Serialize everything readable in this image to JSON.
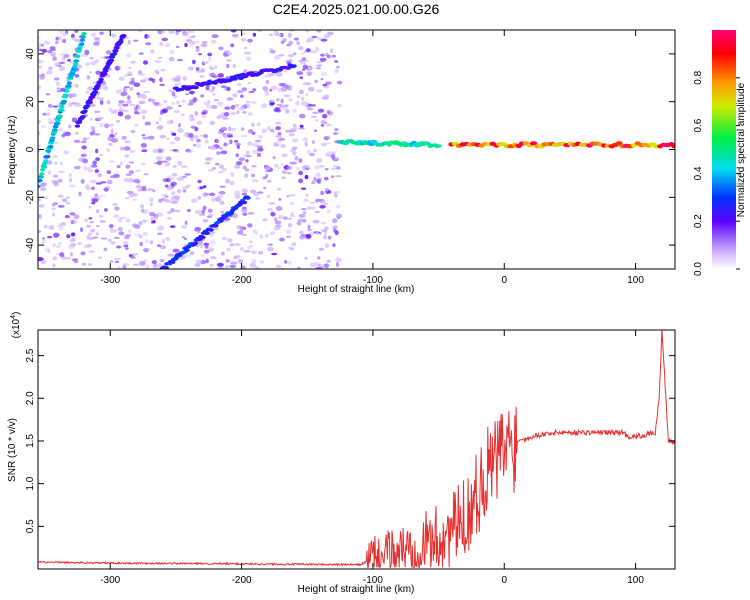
{
  "title": "C2E4.2025.021.00.00.G26",
  "chart_data": [
    {
      "type": "heatmap",
      "xlabel": "Height of straight line (km)",
      "ylabel": "Frequency (Hz)",
      "xlim": [
        -355,
        130
      ],
      "ylim": [
        -50,
        50
      ],
      "xticks": [
        -300,
        -200,
        -100,
        0,
        100
      ],
      "yticks": [
        -40,
        -20,
        0,
        20,
        40
      ],
      "colorbar": {
        "label": "Normalized spectral amplitude",
        "range": [
          0,
          1
        ],
        "ticks": [
          "0.0",
          "0.2",
          "0.4",
          "0.6",
          "0.8"
        ]
      },
      "features": [
        {
          "name": "",
          "x": [
            -355,
            -320
          ],
          "y": [
            -15,
            48
          ],
          "amplitude": 0.45
        },
        {
          "name": "",
          "x": [
            -325,
            -290
          ],
          "y": [
            10,
            48
          ],
          "amplitude": 0.25
        },
        {
          "name": "",
          "x": [
            -260,
            -195
          ],
          "y": [
            -50,
            -20
          ],
          "amplitude": 0.3
        },
        {
          "name": "",
          "x": [
            -250,
            -160
          ],
          "y": [
            25,
            35
          ],
          "amplitude": 0.25
        },
        {
          "name": "",
          "x": [
            -125,
            -50
          ],
          "y": [
            3,
            2
          ],
          "amplitude": 0.5
        },
        {
          "name": "",
          "x": [
            -40,
            130
          ],
          "y": [
            2,
            2
          ],
          "amplitude": 0.9
        }
      ]
    },
    {
      "type": "line",
      "xlabel": "Height of straight line (km)",
      "ylabel": "SNR (10 * v/v)",
      "y_multiplier": "(x10",
      "y_multiplier_exp": "4",
      "xlim": [
        -355,
        130
      ],
      "ylim": [
        0,
        2.8
      ],
      "xticks": [
        -300,
        -200,
        -100,
        0,
        100
      ],
      "yticks": [
        "0.5",
        "1.0",
        "1.5",
        "2.0",
        "2.5"
      ],
      "series": [
        {
          "color": "#e83030",
          "x": [
            -355,
            -300,
            -200,
            -110,
            -100,
            -90,
            -80,
            -70,
            -60,
            -50,
            -40,
            -30,
            -20,
            -15,
            -10,
            -5,
            0,
            10,
            20,
            30,
            40,
            60,
            80,
            90,
            95,
            100,
            110,
            115,
            118,
            120,
            125,
            130
          ],
          "y": [
            0.08,
            0.07,
            0.06,
            0.05,
            0.12,
            0.15,
            0.2,
            0.25,
            0.3,
            0.35,
            0.45,
            0.6,
            0.9,
            1.1,
            1.2,
            1.3,
            1.4,
            1.5,
            1.55,
            1.58,
            1.6,
            1.6,
            1.6,
            1.6,
            1.55,
            1.55,
            1.58,
            1.6,
            2.0,
            2.8,
            1.5,
            1.48
          ]
        }
      ]
    }
  ]
}
